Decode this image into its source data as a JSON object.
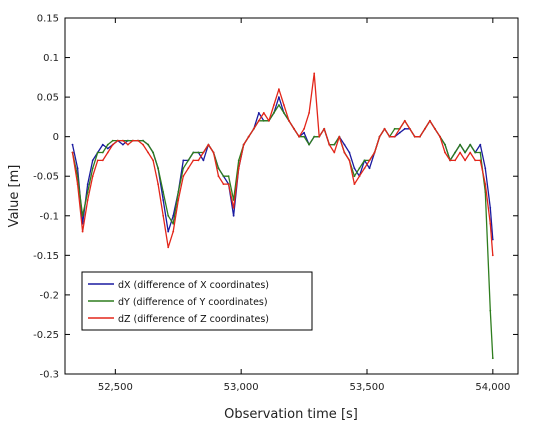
{
  "chart_data": {
    "type": "line",
    "xlabel": "Observation time [s]",
    "ylabel": "Value [m]",
    "xlim": [
      52300,
      54100
    ],
    "ylim": [
      -0.3,
      0.15
    ],
    "xticks": [
      52500,
      53000,
      53500,
      54000
    ],
    "xtick_labels": [
      "52,500",
      "53,000",
      "53,500",
      "54,000"
    ],
    "yticks": [
      0.15,
      0.1,
      0.05,
      0,
      -0.05,
      -0.1,
      -0.15,
      -0.2,
      -0.25,
      -0.3
    ],
    "ytick_labels": [
      "0.15",
      "0.1",
      "0.05",
      "0",
      "-0.05",
      "-0.1",
      "-0.15",
      "-0.2",
      "-0.25",
      "-0.3"
    ],
    "grid": false,
    "legend_position": "bottom-left",
    "x": [
      52330,
      52350,
      52370,
      52390,
      52410,
      52430,
      52450,
      52470,
      52490,
      52510,
      52530,
      52550,
      52570,
      52590,
      52610,
      52630,
      52650,
      52670,
      52690,
      52710,
      52730,
      52750,
      52770,
      52790,
      52810,
      52830,
      52850,
      52870,
      52890,
      52910,
      52930,
      52950,
      52970,
      52990,
      53010,
      53030,
      53050,
      53070,
      53090,
      53110,
      53130,
      53150,
      53170,
      53190,
      53210,
      53230,
      53250,
      53270,
      53290,
      53310,
      53330,
      53350,
      53370,
      53390,
      53410,
      53430,
      53450,
      53470,
      53490,
      53510,
      53530,
      53550,
      53570,
      53590,
      53610,
      53630,
      53650,
      53670,
      53690,
      53710,
      53730,
      53750,
      53770,
      53790,
      53810,
      53830,
      53850,
      53870,
      53890,
      53910,
      53930,
      53950,
      53970,
      53990,
      54000
    ],
    "series": [
      {
        "name": "dX (difference of X coordinates)",
        "color": "#1a1aa0",
        "values": [
          -0.01,
          -0.04,
          -0.11,
          -0.06,
          -0.03,
          -0.02,
          -0.01,
          -0.015,
          -0.01,
          -0.005,
          -0.01,
          -0.005,
          -0.005,
          -0.005,
          -0.005,
          -0.01,
          -0.02,
          -0.04,
          -0.08,
          -0.12,
          -0.1,
          -0.07,
          -0.03,
          -0.03,
          -0.02,
          -0.02,
          -0.03,
          -0.01,
          -0.02,
          -0.04,
          -0.05,
          -0.06,
          -0.1,
          -0.04,
          -0.01,
          0.0,
          0.01,
          0.03,
          0.02,
          0.02,
          0.03,
          0.05,
          0.03,
          0.02,
          0.01,
          0.0,
          0.005,
          -0.01,
          0.0,
          0.0,
          0.01,
          -0.01,
          -0.01,
          0.0,
          -0.01,
          -0.02,
          -0.04,
          -0.05,
          -0.03,
          -0.04,
          -0.02,
          0.0,
          0.01,
          0.0,
          0.0,
          0.005,
          0.01,
          0.01,
          0.0,
          0.0,
          0.01,
          0.02,
          0.01,
          0.0,
          -0.01,
          -0.03,
          -0.02,
          -0.01,
          -0.02,
          -0.01,
          -0.02,
          -0.01,
          -0.04,
          -0.09,
          -0.13
        ]
      },
      {
        "name": "dY (difference of Y coordinates)",
        "color": "#2e7d1e",
        "values": [
          -0.02,
          -0.05,
          -0.1,
          -0.07,
          -0.04,
          -0.02,
          -0.02,
          -0.01,
          -0.005,
          -0.005,
          -0.005,
          -0.005,
          -0.005,
          -0.005,
          -0.005,
          -0.01,
          -0.02,
          -0.04,
          -0.07,
          -0.1,
          -0.11,
          -0.07,
          -0.04,
          -0.03,
          -0.02,
          -0.02,
          -0.02,
          -0.01,
          -0.02,
          -0.04,
          -0.05,
          -0.05,
          -0.08,
          -0.03,
          -0.01,
          0.0,
          0.01,
          0.02,
          0.02,
          0.02,
          0.03,
          0.04,
          0.03,
          0.02,
          0.01,
          0.0,
          0.0,
          -0.01,
          0.0,
          0.0,
          0.01,
          -0.01,
          -0.01,
          0.0,
          -0.02,
          -0.03,
          -0.05,
          -0.04,
          -0.03,
          -0.03,
          -0.02,
          0.0,
          0.01,
          0.0,
          0.01,
          0.01,
          0.02,
          0.01,
          0.0,
          0.0,
          0.01,
          0.02,
          0.01,
          0.0,
          -0.01,
          -0.03,
          -0.02,
          -0.01,
          -0.02,
          -0.01,
          -0.02,
          -0.02,
          -0.07,
          -0.22,
          -0.28
        ]
      },
      {
        "name": "dZ (difference of Z coordinates)",
        "color": "#e3261a",
        "values": [
          -0.02,
          -0.06,
          -0.12,
          -0.08,
          -0.05,
          -0.03,
          -0.03,
          -0.02,
          -0.01,
          -0.005,
          -0.005,
          -0.01,
          -0.005,
          -0.005,
          -0.01,
          -0.02,
          -0.03,
          -0.06,
          -0.1,
          -0.14,
          -0.12,
          -0.08,
          -0.05,
          -0.04,
          -0.03,
          -0.03,
          -0.02,
          -0.01,
          -0.02,
          -0.05,
          -0.06,
          -0.06,
          -0.09,
          -0.04,
          -0.01,
          0.0,
          0.01,
          0.02,
          0.03,
          0.02,
          0.04,
          0.06,
          0.04,
          0.02,
          0.01,
          0.0,
          0.01,
          0.03,
          0.08,
          0.0,
          0.01,
          -0.01,
          -0.02,
          0.0,
          -0.02,
          -0.03,
          -0.06,
          -0.05,
          -0.04,
          -0.03,
          -0.02,
          0.0,
          0.01,
          0.0,
          0.0,
          0.01,
          0.02,
          0.01,
          0.0,
          0.0,
          0.01,
          0.02,
          0.01,
          0.0,
          -0.02,
          -0.03,
          -0.03,
          -0.02,
          -0.03,
          -0.02,
          -0.03,
          -0.03,
          -0.06,
          -0.11,
          -0.15
        ]
      }
    ]
  }
}
